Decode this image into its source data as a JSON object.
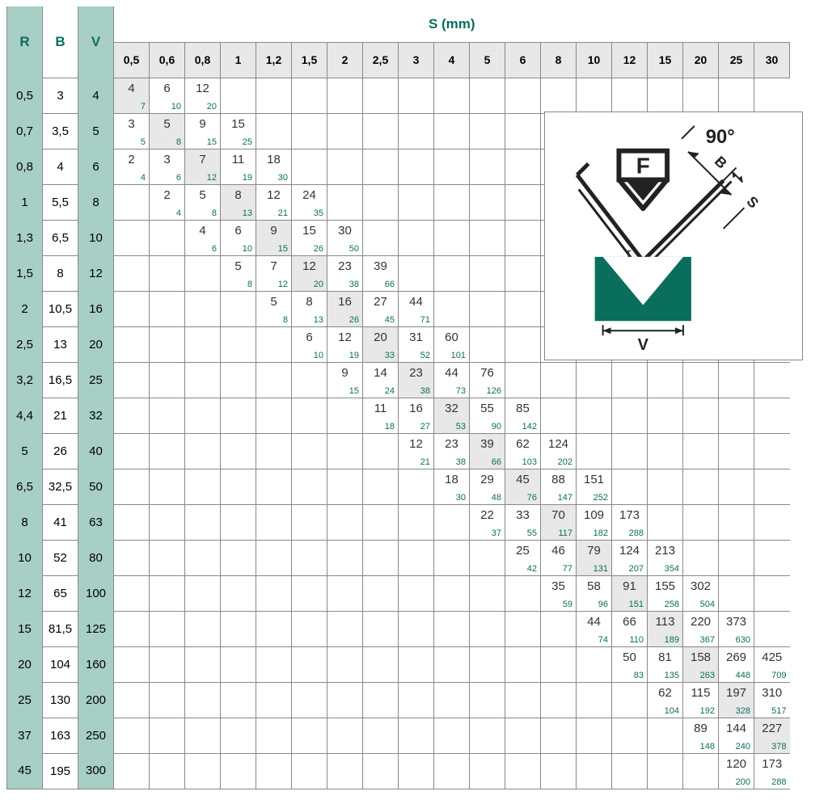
{
  "title": "S (mm)",
  "headers": {
    "R": "R",
    "B": "B",
    "V": "V"
  },
  "s_columns": [
    "0,5",
    "0,6",
    "0,8",
    "1",
    "1,2",
    "1,5",
    "2",
    "2,5",
    "3",
    "4",
    "5",
    "6",
    "8",
    "10",
    "12",
    "15",
    "20",
    "25",
    "30"
  ],
  "diagram": {
    "angle_label": "90°",
    "force_label": "F",
    "b_label": "B",
    "s_label": "S",
    "r_label": "r",
    "v_label": "V",
    "die_color": "#0a6e5c",
    "line_color": "#222222",
    "bg_color": "#ffffff"
  },
  "rows": [
    {
      "R": "0,5",
      "B": "3",
      "V": "4",
      "cells": {
        "0": [
          "4",
          "7"
        ],
        "1": [
          "6",
          "10"
        ],
        "2": [
          "12",
          "20"
        ]
      },
      "hl": [
        0
      ]
    },
    {
      "R": "0,7",
      "B": "3,5",
      "V": "5",
      "cells": {
        "0": [
          "3",
          "5"
        ],
        "1": [
          "5",
          "8"
        ],
        "2": [
          "9",
          "15"
        ],
        "3": [
          "15",
          "25"
        ]
      },
      "hl": [
        1
      ]
    },
    {
      "R": "0,8",
      "B": "4",
      "V": "6",
      "cells": {
        "0": [
          "2",
          "4"
        ],
        "1": [
          "3",
          "6"
        ],
        "2": [
          "7",
          "12"
        ],
        "3": [
          "11",
          "19"
        ],
        "4": [
          "18",
          "30"
        ]
      },
      "hl": [
        2
      ]
    },
    {
      "R": "1",
      "B": "5,5",
      "V": "8",
      "cells": {
        "1": [
          "2",
          "4"
        ],
        "2": [
          "5",
          "8"
        ],
        "3": [
          "8",
          "13"
        ],
        "4": [
          "12",
          "21"
        ],
        "5": [
          "24",
          "35"
        ]
      },
      "hl": [
        3
      ]
    },
    {
      "R": "1,3",
      "B": "6,5",
      "V": "10",
      "cells": {
        "2": [
          "4",
          "6"
        ],
        "3": [
          "6",
          "10"
        ],
        "4": [
          "9",
          "15"
        ],
        "5": [
          "15",
          "26"
        ],
        "6": [
          "30",
          "50"
        ]
      },
      "hl": [
        4
      ]
    },
    {
      "R": "1,5",
      "B": "8",
      "V": "12",
      "cells": {
        "3": [
          "5",
          "8"
        ],
        "4": [
          "7",
          "12"
        ],
        "5": [
          "12",
          "20"
        ],
        "6": [
          "23",
          "38"
        ],
        "7": [
          "39",
          "66"
        ]
      },
      "hl": [
        5
      ]
    },
    {
      "R": "2",
      "B": "10,5",
      "V": "16",
      "cells": {
        "4": [
          "5",
          "8"
        ],
        "5": [
          "8",
          "13"
        ],
        "6": [
          "16",
          "26"
        ],
        "7": [
          "27",
          "45"
        ],
        "8": [
          "44",
          "71"
        ]
      },
      "hl": [
        6
      ]
    },
    {
      "R": "2,5",
      "B": "13",
      "V": "20",
      "cells": {
        "5": [
          "6",
          "10"
        ],
        "6": [
          "12",
          "19"
        ],
        "7": [
          "20",
          "33"
        ],
        "8": [
          "31",
          "52"
        ],
        "9": [
          "60",
          "101"
        ]
      },
      "hl": [
        7
      ]
    },
    {
      "R": "3,2",
      "B": "16,5",
      "V": "25",
      "cells": {
        "6": [
          "9",
          "15"
        ],
        "7": [
          "14",
          "24"
        ],
        "8": [
          "23",
          "38"
        ],
        "9": [
          "44",
          "73"
        ],
        "10": [
          "76",
          "126"
        ]
      },
      "hl": [
        8
      ]
    },
    {
      "R": "4,4",
      "B": "21",
      "V": "32",
      "cells": {
        "7": [
          "11",
          "18"
        ],
        "8": [
          "16",
          "27"
        ],
        "9": [
          "32",
          "53"
        ],
        "10": [
          "55",
          "90"
        ],
        "11": [
          "85",
          "142"
        ]
      },
      "hl": [
        9
      ]
    },
    {
      "R": "5",
      "B": "26",
      "V": "40",
      "cells": {
        "8": [
          "12",
          "21"
        ],
        "9": [
          "23",
          "38"
        ],
        "10": [
          "39",
          "66"
        ],
        "11": [
          "62",
          "103"
        ],
        "12": [
          "124",
          "202"
        ]
      },
      "hl": [
        10
      ]
    },
    {
      "R": "6,5",
      "B": "32,5",
      "V": "50",
      "cells": {
        "9": [
          "18",
          "30"
        ],
        "10": [
          "29",
          "48"
        ],
        "11": [
          "45",
          "76"
        ],
        "12": [
          "88",
          "147"
        ],
        "13": [
          "151",
          "252"
        ]
      },
      "hl": [
        11
      ]
    },
    {
      "R": "8",
      "B": "41",
      "V": "63",
      "cells": {
        "10": [
          "22",
          "37"
        ],
        "11": [
          "33",
          "55"
        ],
        "12": [
          "70",
          "117"
        ],
        "13": [
          "109",
          "182"
        ],
        "14": [
          "173",
          "288"
        ]
      },
      "hl": [
        12
      ]
    },
    {
      "R": "10",
      "B": "52",
      "V": "80",
      "cells": {
        "11": [
          "25",
          "42"
        ],
        "12": [
          "46",
          "77"
        ],
        "13": [
          "79",
          "131"
        ],
        "14": [
          "124",
          "207"
        ],
        "15": [
          "213",
          "354"
        ]
      },
      "hl": [
        13
      ]
    },
    {
      "R": "12",
      "B": "65",
      "V": "100",
      "cells": {
        "12": [
          "35",
          "59"
        ],
        "13": [
          "58",
          "96"
        ],
        "14": [
          "91",
          "151"
        ],
        "15": [
          "155",
          "258"
        ],
        "16": [
          "302",
          "504"
        ]
      },
      "hl": [
        14
      ]
    },
    {
      "R": "15",
      "B": "81,5",
      "V": "125",
      "cells": {
        "13": [
          "44",
          "74"
        ],
        "14": [
          "66",
          "110"
        ],
        "15": [
          "113",
          "189"
        ],
        "16": [
          "220",
          "367"
        ],
        "17": [
          "373",
          "630"
        ]
      },
      "hl": [
        15
      ]
    },
    {
      "R": "20",
      "B": "104",
      "V": "160",
      "cells": {
        "14": [
          "50",
          "83"
        ],
        "15": [
          "81",
          "135"
        ],
        "16": [
          "158",
          "263"
        ],
        "17": [
          "269",
          "448"
        ],
        "18": [
          "425",
          "709"
        ]
      },
      "hl": [
        16
      ]
    },
    {
      "R": "25",
      "B": "130",
      "V": "200",
      "cells": {
        "15": [
          "62",
          "104"
        ],
        "16": [
          "115",
          "192"
        ],
        "17": [
          "197",
          "328"
        ],
        "18": [
          "310",
          "517"
        ]
      },
      "hl": [
        17
      ]
    },
    {
      "R": "37",
      "B": "163",
      "V": "250",
      "cells": {
        "16": [
          "89",
          "148"
        ],
        "17": [
          "144",
          "240"
        ],
        "18": [
          "227",
          "378"
        ]
      },
      "hl": [
        18
      ]
    },
    {
      "R": "45",
      "B": "195",
      "V": "300",
      "cells": {
        "17": [
          "120",
          "200"
        ],
        "18": [
          "173",
          "288"
        ]
      },
      "hl": []
    }
  ],
  "colors": {
    "header_teal": "#a7cfc5",
    "header_grey": "#e8e8e8",
    "accent": "#0a6e5c",
    "border": "#888888",
    "text_main": "#333333"
  }
}
